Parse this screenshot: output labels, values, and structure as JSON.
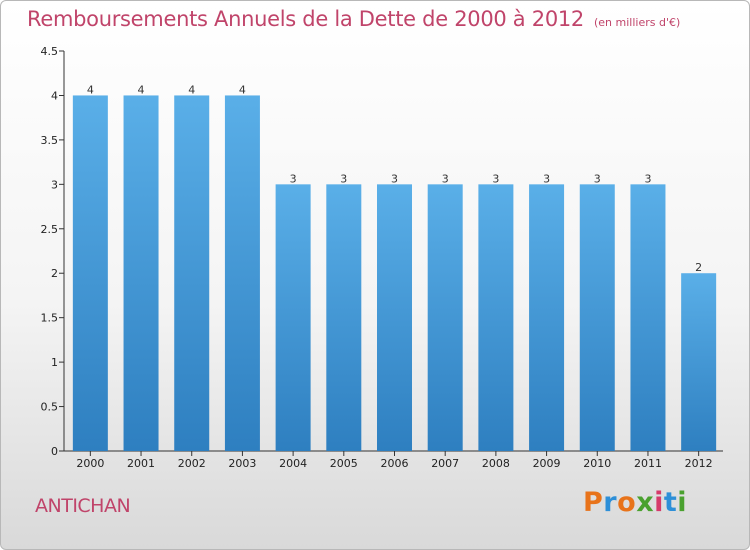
{
  "header": {
    "title": "Remboursements Annuels de la Dette de 2000 à 2012",
    "subtitle": "(en milliers d'€)"
  },
  "footer": {
    "commune": "ANTICHAN",
    "logo": "Proxiti"
  },
  "colors": {
    "accent": "#c0446a",
    "bar_top": "#5aafe8",
    "bar_bottom": "#2e7fc0"
  },
  "chart_data": {
    "type": "bar",
    "categories": [
      "2000",
      "2001",
      "2002",
      "2003",
      "2004",
      "2005",
      "2006",
      "2007",
      "2008",
      "2009",
      "2010",
      "2011",
      "2012"
    ],
    "values": [
      4,
      4,
      4,
      4,
      3,
      3,
      3,
      3,
      3,
      3,
      3,
      3,
      2
    ],
    "title": "Remboursements Annuels de la Dette de 2000 à 2012",
    "ylim": [
      0,
      4.5
    ],
    "yticks": [
      "0",
      "0.5",
      "1",
      "1.5",
      "2",
      "2.5",
      "3",
      "3.5",
      "4",
      "4.5"
    ],
    "grid": false
  }
}
